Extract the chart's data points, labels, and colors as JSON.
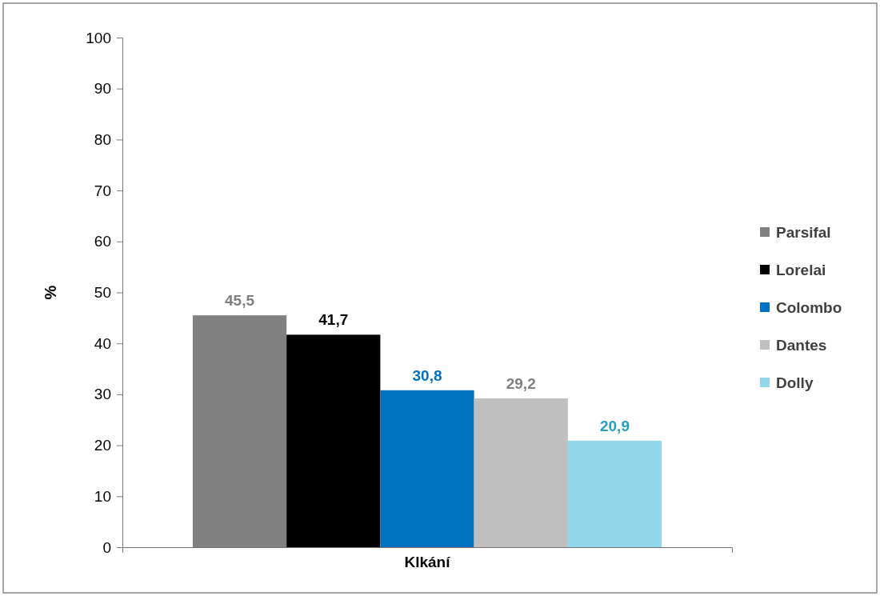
{
  "chart_data": {
    "type": "bar",
    "categories": [
      "Klkání"
    ],
    "ylabel": "%",
    "ylim": [
      0,
      100
    ],
    "yticks": [
      0,
      10,
      20,
      30,
      40,
      50,
      60,
      70,
      80,
      90,
      100
    ],
    "grid": false,
    "legend": "right",
    "series": [
      {
        "name": "Parsifal",
        "color": "#808080",
        "values": [
          45.5
        ],
        "value_labels": [
          "45,5"
        ]
      },
      {
        "name": "Lorelai",
        "color": "#000000",
        "values": [
          41.7
        ],
        "value_labels": [
          "41,7"
        ]
      },
      {
        "name": "Colombo",
        "color": "#0070c0",
        "values": [
          30.8
        ],
        "value_labels": [
          "30,8"
        ]
      },
      {
        "name": "Dantes",
        "color": "#bfbfbf",
        "values": [
          29.2
        ],
        "value_labels": [
          "29,2"
        ]
      },
      {
        "name": "Dolly",
        "color": "#92d7ea",
        "values": [
          20.9
        ],
        "value_labels": [
          "20,9"
        ]
      }
    ]
  }
}
